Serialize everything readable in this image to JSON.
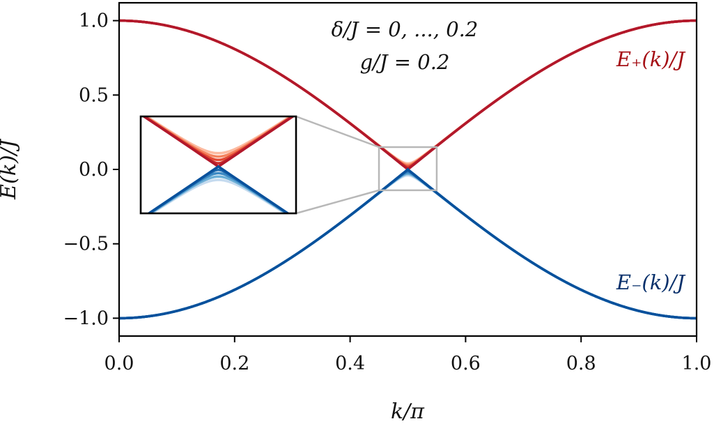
{
  "chart_data": {
    "type": "line",
    "xlabel": "k/π",
    "ylabel": "E(k)/J",
    "xlim": [
      0.0,
      1.0
    ],
    "ylim": [
      -1.12,
      1.12
    ],
    "xticks": [
      0.0,
      0.2,
      0.4,
      0.6,
      0.8,
      1.0
    ],
    "xtick_labels": [
      "0.0",
      "0.2",
      "0.4",
      "0.6",
      "0.8",
      "1.0"
    ],
    "yticks": [
      -1.0,
      -0.5,
      0.0,
      0.5,
      1.0
    ],
    "ytick_labels": [
      "−1.0",
      "−0.5",
      "0.0",
      "0.5",
      "1.0"
    ],
    "annotation": {
      "line1": "δ/J = 0, ..., 0.2",
      "line2": "g/J = 0.2"
    },
    "series_labels": {
      "upper": "E₊(k)/J",
      "lower": "E₋(k)/J"
    },
    "deltas": [
      0.0,
      0.05,
      0.1,
      0.15,
      0.2
    ],
    "g": 0.2,
    "colors": {
      "upper": [
        "#b2182b",
        "#cb2c2a",
        "#e34a33",
        "#f4845f",
        "#fcbba1"
      ],
      "lower": [
        "#08519c",
        "#1f6bb0",
        "#3d8ac4",
        "#6baed6",
        "#c6dbef"
      ],
      "upper_label": "#a50f15",
      "lower_label": "#08306b",
      "zoom_box": "#b8b8b8"
    },
    "zoom_region": {
      "xlim": [
        0.45,
        0.55
      ],
      "ylim": [
        -0.14,
        0.15
      ]
    },
    "inset": {
      "xlim": [
        0.45,
        0.55
      ],
      "ylim": [
        -0.14,
        0.15
      ]
    }
  }
}
